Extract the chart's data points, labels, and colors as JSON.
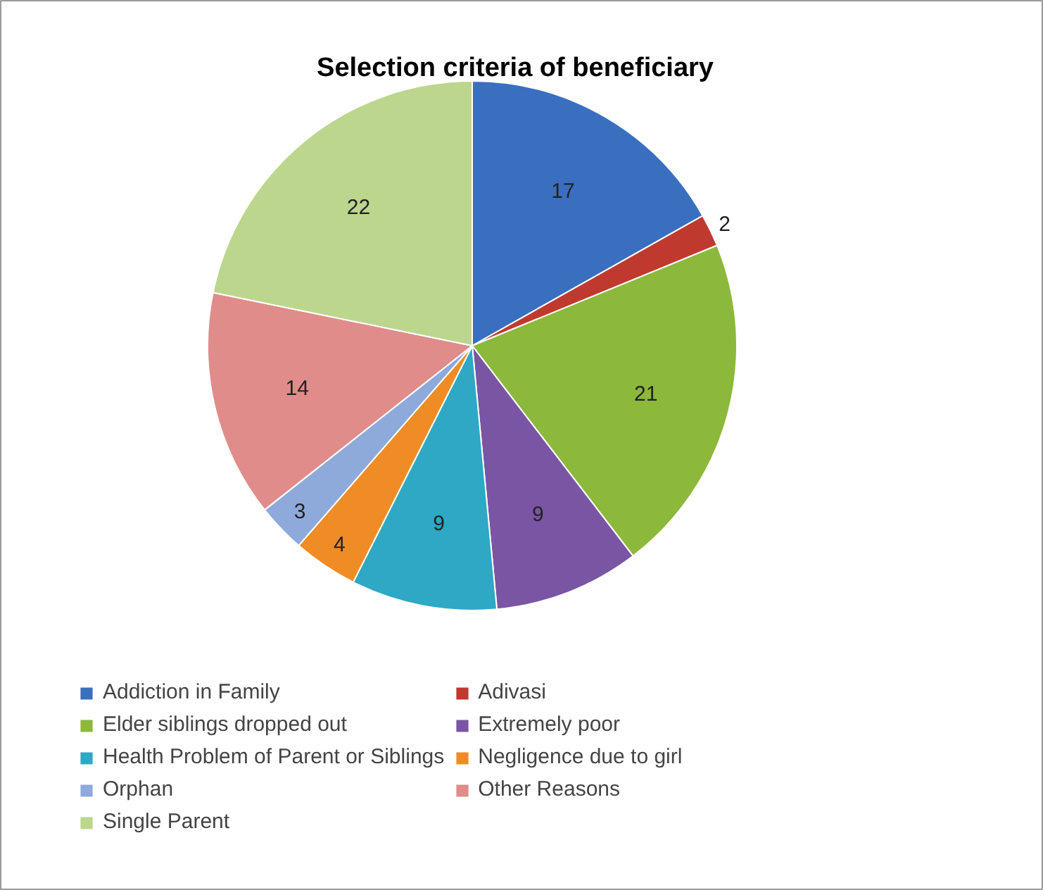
{
  "chart_data": {
    "type": "pie",
    "title": "Selection criteria of beneficiary",
    "categories": [
      "Addiction in Family",
      "Adivasi",
      "Elder siblings dropped out",
      "Extremely poor",
      "Health Problem of Parent or Siblings",
      "Negligence due to girl",
      "Orphan",
      "Other Reasons",
      "Single Parent"
    ],
    "values": [
      17,
      2,
      21,
      9,
      9,
      4,
      3,
      14,
      22
    ],
    "colors": [
      "#3a6fbf",
      "#c0392f",
      "#8cb83c",
      "#7a55a3",
      "#2ea8c4",
      "#f08c25",
      "#8eaadb",
      "#e08c8a",
      "#bcd68e"
    ],
    "data_labels": true,
    "legend": "bottom"
  }
}
